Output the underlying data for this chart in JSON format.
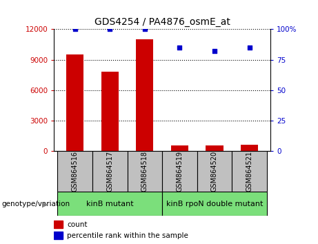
{
  "title": "GDS4254 / PA4876_osmE_at",
  "categories": [
    "GSM864516",
    "GSM864517",
    "GSM864518",
    "GSM864519",
    "GSM864520",
    "GSM864521"
  ],
  "bar_values": [
    9500,
    7800,
    11000,
    600,
    550,
    620
  ],
  "percentile_values": [
    100,
    100,
    100,
    85,
    82,
    85
  ],
  "bar_color": "#cc0000",
  "dot_color": "#0000cc",
  "ylim_left": [
    0,
    12000
  ],
  "ylim_right": [
    0,
    100
  ],
  "yticks_left": [
    0,
    3000,
    6000,
    9000,
    12000
  ],
  "ytick_labels_left": [
    "0",
    "3000",
    "6000",
    "9000",
    "12000"
  ],
  "yticks_right": [
    0,
    25,
    50,
    75,
    100
  ],
  "ytick_labels_right": [
    "0",
    "25",
    "50",
    "75",
    "100%"
  ],
  "group1_label": "kinB mutant",
  "group2_label": "kinB rpoN double mutant",
  "group_label_left": "genotype/variation",
  "legend_count": "count",
  "legend_percentile": "percentile rank within the sample",
  "group1_indices": [
    0,
    1,
    2
  ],
  "group2_indices": [
    3,
    4,
    5
  ],
  "group_color": "#7bdf7b",
  "bar_width": 0.5,
  "sample_box_color": "#c0c0c0",
  "background_color": "#ffffff"
}
